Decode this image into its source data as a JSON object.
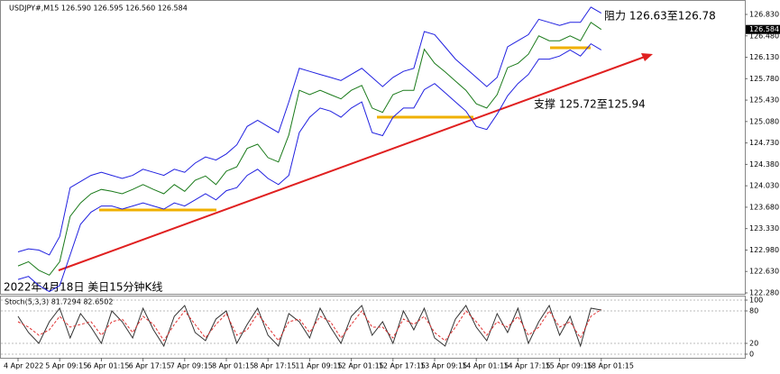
{
  "chart_data": [
    {
      "type": "line",
      "title": "USDJPY#,M15  126.590 126.595 126.560 126.584",
      "annotations": [
        "阻力 126.63至126.78",
        "支撑 125.72至125.94",
        "2022年4月18日 美日15分钟K线"
      ],
      "last_price": {
        "value": 126.584,
        "label": "126.584"
      },
      "categories": [
        "4 Apr 2022",
        null,
        null,
        null,
        "5 Apr 09:15",
        null,
        null,
        null,
        "6 Apr 01:15",
        null,
        null,
        null,
        "6 Apr 17:15",
        null,
        null,
        null,
        "7 Apr 09:15",
        null,
        null,
        null,
        "8 Apr 01:15",
        null,
        null,
        null,
        "8 Apr 17:15",
        null,
        null,
        null,
        "11 Apr 09:15",
        null,
        null,
        null,
        "12 Apr 01:15",
        null,
        null,
        null,
        "12 Apr 17:15",
        null,
        null,
        null,
        "13 Apr 09:15",
        null,
        null,
        null,
        "14 Apr 01:15",
        null,
        null,
        null,
        "14 Apr 17:15",
        null,
        null,
        null,
        "15 Apr 09:15",
        null,
        null,
        null,
        "18 Apr 01:15"
      ],
      "series": [
        {
          "color": "#1a7a1a",
          "values": [
            122.72,
            122.79,
            122.65,
            122.57,
            122.79,
            123.53,
            123.75,
            123.9,
            123.97,
            123.94,
            123.9,
            123.97,
            124.05,
            123.97,
            123.9,
            124.05,
            123.94,
            124.12,
            124.19,
            124.05,
            124.27,
            124.34,
            124.64,
            124.71,
            124.49,
            124.42,
            124.86,
            125.59,
            125.52,
            125.59,
            125.52,
            125.45,
            125.59,
            125.67,
            125.3,
            125.23,
            125.52,
            125.59,
            125.59,
            126.26,
            126.03,
            125.89,
            125.74,
            125.59,
            125.37,
            125.3,
            125.52,
            125.96,
            126.03,
            126.18,
            126.48,
            126.4,
            126.4,
            126.48,
            126.4,
            126.7,
            126.584
          ]
        },
        {
          "color": "#2020e0",
          "values": [
            122.95,
            123.0,
            122.98,
            122.9,
            123.2,
            124.0,
            124.1,
            124.2,
            124.25,
            124.2,
            124.15,
            124.2,
            124.3,
            124.25,
            124.2,
            124.3,
            124.25,
            124.4,
            124.5,
            124.45,
            124.55,
            124.7,
            125.0,
            125.1,
            125.0,
            124.9,
            125.4,
            125.95,
            125.9,
            125.85,
            125.8,
            125.75,
            125.85,
            125.95,
            125.8,
            125.65,
            125.8,
            125.9,
            125.95,
            126.55,
            126.5,
            126.3,
            126.1,
            125.95,
            125.8,
            125.65,
            125.8,
            126.3,
            126.4,
            126.5,
            126.75,
            126.7,
            126.65,
            126.7,
            126.7,
            126.95,
            126.85
          ]
        },
        {
          "color": "#2020e0",
          "values": [
            122.5,
            122.55,
            122.4,
            122.3,
            122.4,
            122.9,
            123.4,
            123.6,
            123.7,
            123.7,
            123.65,
            123.7,
            123.75,
            123.7,
            123.65,
            123.75,
            123.7,
            123.8,
            123.9,
            123.8,
            123.95,
            124.0,
            124.2,
            124.3,
            124.15,
            124.05,
            124.2,
            124.9,
            125.15,
            125.3,
            125.25,
            125.15,
            125.3,
            125.4,
            124.9,
            124.85,
            125.15,
            125.3,
            125.3,
            125.6,
            125.7,
            125.55,
            125.4,
            125.25,
            125.0,
            124.95,
            125.2,
            125.5,
            125.7,
            125.85,
            126.1,
            126.1,
            126.15,
            126.25,
            126.15,
            126.35,
            126.25
          ]
        }
      ],
      "ylim": [
        122.28,
        126.83
      ],
      "yticks": [
        {
          "value": 126.83,
          "label": "126.830"
        },
        {
          "value": 126.48,
          "label": "126.480"
        },
        {
          "value": 126.13,
          "label": "126.130"
        },
        {
          "value": 125.78,
          "label": "125.780"
        },
        {
          "value": 125.43,
          "label": "125.430"
        },
        {
          "value": 125.08,
          "label": "125.080"
        },
        {
          "value": 124.73,
          "label": "124.730"
        },
        {
          "value": 124.38,
          "label": "124.380"
        },
        {
          "value": 124.03,
          "label": "124.030"
        },
        {
          "value": 123.68,
          "label": "123.680"
        },
        {
          "value": 123.33,
          "label": "123.330"
        },
        {
          "value": 122.98,
          "label": "122.980"
        },
        {
          "value": 122.63,
          "label": "122.630"
        },
        {
          "value": 122.28,
          "label": "122.280"
        }
      ]
    },
    {
      "type": "line",
      "title": "Stoch(5,3,3) 81.7294 82.6502",
      "series": [
        {
          "color": "#333333",
          "values": [
            70,
            40,
            20,
            60,
            85,
            30,
            75,
            50,
            20,
            80,
            60,
            30,
            85,
            45,
            15,
            70,
            90,
            40,
            25,
            65,
            80,
            20,
            55,
            85,
            35,
            15,
            75,
            60,
            30,
            85,
            50,
            20,
            70,
            90,
            35,
            60,
            20,
            80,
            45,
            85,
            30,
            15,
            65,
            90,
            50,
            25,
            75,
            40,
            85,
            20,
            60,
            90,
            35,
            70,
            15,
            85,
            81.7294
          ]
        },
        {
          "color": "#e03030",
          "values": [
            60,
            50,
            35,
            45,
            70,
            50,
            55,
            60,
            35,
            60,
            65,
            40,
            70,
            55,
            25,
            55,
            80,
            55,
            30,
            55,
            75,
            35,
            45,
            75,
            50,
            25,
            60,
            65,
            40,
            70,
            60,
            30,
            55,
            80,
            50,
            50,
            30,
            65,
            55,
            70,
            40,
            25,
            50,
            80,
            60,
            35,
            60,
            50,
            70,
            35,
            50,
            80,
            50,
            60,
            30,
            70,
            82.6502
          ]
        }
      ],
      "ylim": [
        0,
        100
      ],
      "yticks": [
        100,
        80,
        20,
        0
      ]
    }
  ]
}
